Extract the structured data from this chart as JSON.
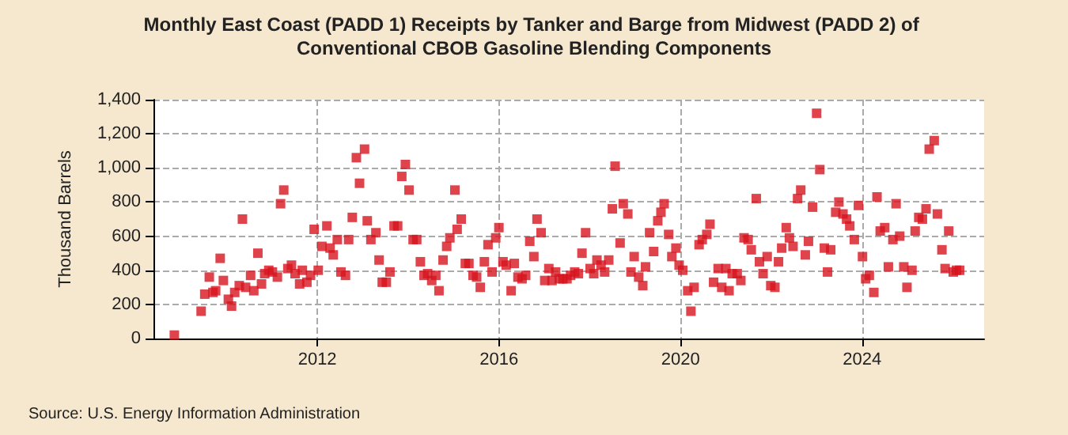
{
  "chart_data": {
    "type": "scatter",
    "title": "Monthly East Coast (PADD 1) Receipts by Tanker and Barge from Midwest (PADD 2) of Conventional CBOB Gasoline Blending Components",
    "ylabel": "Thousand Barrels",
    "annotations": [
      "Source: U.S. Energy Information Administration"
    ],
    "xlim": [
      2008.39,
      2026.69
    ],
    "xticks": [
      2012,
      2016,
      2020,
      2024
    ],
    "ylim": [
      0,
      1400
    ],
    "yticks": [
      0,
      200,
      400,
      600,
      800,
      {
        "value": 1000,
        "label": "1,000"
      },
      {
        "value": 1200,
        "label": "1,200"
      },
      {
        "value": 1400,
        "label": "1,400"
      }
    ],
    "grid": true,
    "marker": "square",
    "series": [
      {
        "color": "#d7141e",
        "x": [
          2008.85,
          2009.44,
          2009.52,
          2009.62,
          2009.7,
          2009.76,
          2009.86,
          2009.93,
          2010.04,
          2010.11,
          2010.18,
          2010.28,
          2010.35,
          2010.42,
          2010.53,
          2010.6,
          2010.69,
          2010.77,
          2010.84,
          2010.93,
          2011.01,
          2011.12,
          2011.19,
          2011.26,
          2011.35,
          2011.43,
          2011.51,
          2011.61,
          2011.67,
          2011.77,
          2011.85,
          2011.93,
          2012.02,
          2012.1,
          2012.21,
          2012.28,
          2012.35,
          2012.44,
          2012.52,
          2012.62,
          2012.69,
          2012.77,
          2012.86,
          2012.93,
          2013.04,
          2013.1,
          2013.18,
          2013.29,
          2013.36,
          2013.43,
          2013.52,
          2013.6,
          2013.69,
          2013.77,
          2013.86,
          2013.94,
          2014.02,
          2014.11,
          2014.19,
          2014.27,
          2014.35,
          2014.43,
          2014.52,
          2014.61,
          2014.68,
          2014.77,
          2014.85,
          2014.92,
          2015.03,
          2015.08,
          2015.17,
          2015.26,
          2015.34,
          2015.43,
          2015.51,
          2015.59,
          2015.68,
          2015.76,
          2015.85,
          2015.93,
          2016.0,
          2016.09,
          2016.16,
          2016.27,
          2016.34,
          2016.42,
          2016.51,
          2016.59,
          2016.68,
          2016.77,
          2016.84,
          2016.93,
          2017.01,
          2017.1,
          2017.17,
          2017.25,
          2017.33,
          2017.41,
          2017.5,
          2017.58,
          2017.67,
          2017.75,
          2017.83,
          2017.91,
          2018.01,
          2018.09,
          2018.16,
          2018.25,
          2018.33,
          2018.42,
          2018.5,
          2018.56,
          2018.67,
          2018.74,
          2018.84,
          2018.91,
          2018.98,
          2019.08,
          2019.17,
          2019.23,
          2019.32,
          2019.41,
          2019.5,
          2019.57,
          2019.64,
          2019.74,
          2019.81,
          2019.9,
          2019.97,
          2020.05,
          2020.16,
          2020.23,
          2020.3,
          2020.41,
          2020.48,
          2020.58,
          2020.65,
          2020.73,
          2020.83,
          2020.91,
          2021.0,
          2021.07,
          2021.14,
          2021.25,
          2021.33,
          2021.4,
          2021.49,
          2021.56,
          2021.67,
          2021.74,
          2021.82,
          2021.91,
          2021.99,
          2022.08,
          2022.16,
          2022.23,
          2022.33,
          2022.4,
          2022.48,
          2022.58,
          2022.65,
          2022.75,
          2022.82,
          2022.91,
          2023.0,
          2023.07,
          2023.17,
          2023.24,
          2023.31,
          2023.42,
          2023.49,
          2023.58,
          2023.66,
          2023.73,
          2023.83,
          2023.92,
          2024.01,
          2024.08,
          2024.16,
          2024.26,
          2024.33,
          2024.4,
          2024.5,
          2024.58,
          2024.68,
          2024.75,
          2024.83,
          2024.92,
          2024.99,
          2025.1,
          2025.17,
          2025.25,
          2025.33,
          2025.41,
          2025.48,
          2025.59,
          2025.66,
          2025.76,
          2025.83,
          2025.91,
          2026.01,
          2026.08,
          2026.15
        ],
        "values": [
          20,
          160,
          260,
          360,
          270,
          280,
          470,
          340,
          230,
          190,
          270,
          310,
          700,
          300,
          370,
          280,
          500,
          320,
          380,
          400,
          390,
          360,
          790,
          870,
          410,
          430,
          380,
          320,
          400,
          330,
          370,
          640,
          400,
          540,
          660,
          530,
          490,
          580,
          390,
          370,
          580,
          710,
          1060,
          910,
          1110,
          690,
          580,
          620,
          460,
          330,
          330,
          390,
          660,
          660,
          950,
          1020,
          870,
          580,
          580,
          450,
          370,
          380,
          340,
          370,
          280,
          460,
          540,
          590,
          870,
          640,
          700,
          440,
          440,
          370,
          360,
          300,
          450,
          550,
          390,
          590,
          650,
          450,
          430,
          280,
          440,
          360,
          350,
          370,
          570,
          480,
          700,
          620,
          340,
          410,
          340,
          390,
          350,
          350,
          350,
          370,
          390,
          380,
          500,
          620,
          410,
          380,
          460,
          430,
          390,
          460,
          760,
          1010,
          560,
          790,
          730,
          390,
          480,
          360,
          310,
          420,
          620,
          510,
          690,
          740,
          790,
          610,
          480,
          530,
          430,
          400,
          280,
          160,
          300,
          550,
          580,
          610,
          670,
          330,
          410,
          300,
          410,
          280,
          380,
          380,
          340,
          590,
          580,
          520,
          820,
          450,
          380,
          480,
          310,
          300,
          450,
          530,
          650,
          590,
          540,
          820,
          870,
          490,
          570,
          770,
          1320,
          990,
          530,
          390,
          520,
          740,
          800,
          730,
          700,
          660,
          580,
          780,
          480,
          350,
          370,
          270,
          830,
          630,
          650,
          420,
          580,
          790,
          600,
          420,
          300,
          400,
          630,
          710,
          700,
          760,
          1110,
          1160,
          730,
          520,
          410,
          630,
          390,
          400,
          400
        ]
      }
    ]
  }
}
